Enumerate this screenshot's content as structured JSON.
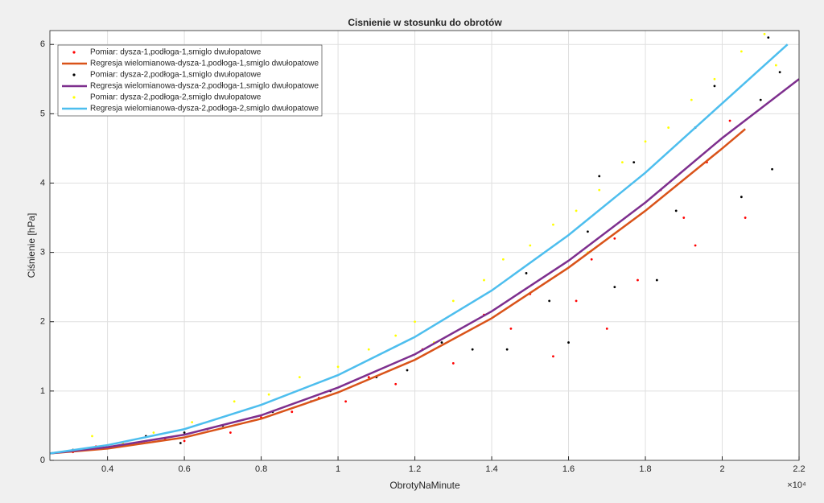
{
  "chart_data": {
    "type": "scatter",
    "title": "Cisnienie w stosunku do obrotów",
    "xlabel": "ObrotyNaMinute",
    "ylabel": "Ciśnienie [hPa]",
    "x_exponent": "×10⁴",
    "xlim": [
      0.25,
      2.2
    ],
    "ylim": [
      0,
      6.2
    ],
    "xticks": [
      0.4,
      0.6,
      0.8,
      1,
      1.2,
      1.4,
      1.6,
      1.8,
      2,
      2.2
    ],
    "yticks": [
      0,
      1,
      2,
      3,
      4,
      5,
      6
    ],
    "grid": true,
    "legend": "northwest",
    "series": [
      {
        "name": "Pomiar: dysza-1,podłoga-1,smiglo dwułopatowe",
        "kind": "scatter",
        "color": "#ff0000",
        "x": [
          0.31,
          0.37,
          0.45,
          0.55,
          0.6,
          0.66,
          0.72,
          0.8,
          0.88,
          0.95,
          1.02,
          1.08,
          1.15,
          1.22,
          1.3,
          1.38,
          1.45,
          1.5,
          1.56,
          1.62,
          1.66,
          1.72,
          1.78,
          1.84,
          1.9,
          1.96,
          2.02,
          2.06,
          1.93,
          1.7
        ],
        "values": [
          0.12,
          0.2,
          0.22,
          0.3,
          0.28,
          0.45,
          0.4,
          0.62,
          0.7,
          0.9,
          0.85,
          1.2,
          1.1,
          1.6,
          1.4,
          2.1,
          1.9,
          2.4,
          1.5,
          2.3,
          2.9,
          3.2,
          2.6,
          3.9,
          3.5,
          4.3,
          4.9,
          3.5,
          3.1,
          1.9
        ]
      },
      {
        "name": "Regresja wielomianowa-dysza-1,podłoga-1,smiglo dwułopatowe",
        "kind": "line",
        "color": "#d95319",
        "x": [
          0.25,
          0.4,
          0.6,
          0.8,
          1.0,
          1.2,
          1.4,
          1.6,
          1.8,
          2.0,
          2.06
        ],
        "values": [
          0.1,
          0.17,
          0.33,
          0.6,
          0.98,
          1.45,
          2.05,
          2.78,
          3.6,
          4.5,
          4.78
        ]
      },
      {
        "name": "Pomiar: dysza-2,podłoga-1,smiglo dwułopatowe",
        "kind": "scatter",
        "color": "#000000",
        "x": [
          0.31,
          0.42,
          0.5,
          0.59,
          0.6,
          0.7,
          0.83,
          0.93,
          0.98,
          1.1,
          1.18,
          1.27,
          1.35,
          1.44,
          1.49,
          1.55,
          1.6,
          1.65,
          1.68,
          1.72,
          1.77,
          1.83,
          1.88,
          1.93,
          1.98,
          2.05,
          2.1,
          2.12,
          2.13,
          2.15
        ],
        "values": [
          0.15,
          0.2,
          0.35,
          0.25,
          0.4,
          0.5,
          0.7,
          0.85,
          1.0,
          1.2,
          1.3,
          1.7,
          1.6,
          1.6,
          2.7,
          2.3,
          1.7,
          3.3,
          4.1,
          2.5,
          4.3,
          2.6,
          3.6,
          4.8,
          5.4,
          3.8,
          5.2,
          6.1,
          4.2,
          5.6
        ]
      },
      {
        "name": "Regresja wielomianowa-dysza-2,podłoga-1,smiglo dwułopatowe",
        "kind": "line",
        "color": "#7e2f8e",
        "x": [
          0.25,
          0.4,
          0.6,
          0.8,
          1.0,
          1.2,
          1.4,
          1.6,
          1.8,
          2.0,
          2.2
        ],
        "values": [
          0.1,
          0.19,
          0.37,
          0.65,
          1.05,
          1.53,
          2.15,
          2.88,
          3.72,
          4.65,
          5.5
        ]
      },
      {
        "name": "Pomiar: dysza-2,podłoga-2,smiglo dwułopatowe",
        "kind": "scatter",
        "color": "#ffff00",
        "x": [
          0.36,
          0.44,
          0.52,
          0.62,
          0.73,
          0.82,
          0.9,
          1.0,
          1.08,
          1.15,
          1.2,
          1.3,
          1.38,
          1.43,
          1.5,
          1.56,
          1.62,
          1.68,
          1.74,
          1.8,
          1.86,
          1.92,
          1.98,
          2.05,
          2.11,
          2.14,
          1.65,
          1.25
        ],
        "values": [
          0.35,
          0.25,
          0.4,
          0.55,
          0.85,
          0.95,
          1.2,
          1.35,
          1.6,
          1.8,
          2.0,
          2.3,
          2.6,
          2.9,
          3.1,
          3.4,
          3.6,
          3.9,
          4.3,
          4.6,
          4.8,
          5.2,
          5.5,
          5.9,
          6.15,
          5.7,
          3.0,
          1.7
        ]
      },
      {
        "name": "Regresja wielomianowa-dysza-2,podłoga-2,smiglo dwułopatowe",
        "kind": "line",
        "color": "#4dbeee",
        "x": [
          0.25,
          0.4,
          0.6,
          0.8,
          1.0,
          1.2,
          1.4,
          1.6,
          1.8,
          2.0,
          2.17
        ],
        "values": [
          0.1,
          0.22,
          0.45,
          0.8,
          1.23,
          1.78,
          2.45,
          3.25,
          4.15,
          5.15,
          6.0
        ]
      }
    ]
  }
}
